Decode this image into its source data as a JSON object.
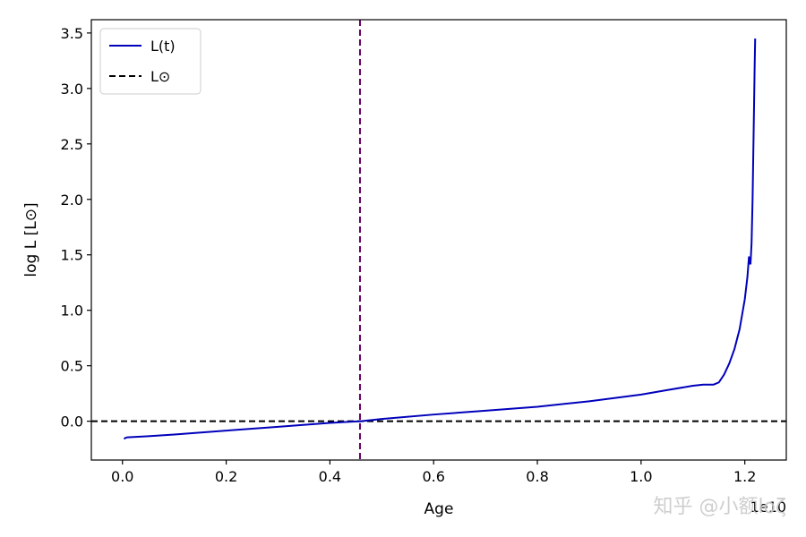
{
  "chart_data": {
    "type": "line",
    "title": "",
    "xlabel": "Age",
    "ylabel": "log L [L⊙]",
    "x_scale_label": "1e10",
    "xlim": [
      -0.06,
      1.28
    ],
    "ylim": [
      -0.35,
      3.62
    ],
    "xticks": [
      0.0,
      0.2,
      0.4,
      0.6,
      0.8,
      1.0,
      1.2
    ],
    "xtick_labels": [
      "0.0",
      "0.2",
      "0.4",
      "0.6",
      "0.8",
      "1.0",
      "1.2"
    ],
    "yticks": [
      0.0,
      0.5,
      1.0,
      1.5,
      2.0,
      2.5,
      3.0,
      3.5
    ],
    "ytick_labels": [
      "0.0",
      "0.5",
      "1.0",
      "1.5",
      "2.0",
      "2.5",
      "3.0",
      "3.5"
    ],
    "grid": false,
    "legend": {
      "placement": "top-left",
      "entries": [
        {
          "label": "L(t)",
          "color": "#0000bb",
          "style": "solid"
        },
        {
          "label": "L⊙",
          "color": "#000000",
          "style": "dashed"
        }
      ]
    },
    "series": [
      {
        "name": "L(t)",
        "color": "#0000bb",
        "x": [
          0.003,
          0.006,
          0.01,
          0.05,
          0.1,
          0.2,
          0.3,
          0.4,
          0.46,
          0.5,
          0.6,
          0.7,
          0.8,
          0.9,
          1.0,
          1.05,
          1.1,
          1.12,
          1.14,
          1.15,
          1.16,
          1.17,
          1.18,
          1.19,
          1.2,
          1.205,
          1.208,
          1.21,
          1.211,
          1.213,
          1.215,
          1.217,
          1.219,
          1.22
        ],
        "y": [
          -0.16,
          -0.15,
          -0.145,
          -0.135,
          -0.12,
          -0.085,
          -0.05,
          -0.015,
          0.0,
          0.02,
          0.06,
          0.095,
          0.13,
          0.18,
          0.24,
          0.28,
          0.32,
          0.33,
          0.33,
          0.35,
          0.42,
          0.52,
          0.65,
          0.83,
          1.1,
          1.3,
          1.48,
          1.42,
          1.42,
          1.6,
          2.0,
          2.6,
          3.2,
          3.45
        ]
      }
    ],
    "reference_lines": [
      {
        "orientation": "horizontal",
        "value": 0.0,
        "color": "#000000",
        "style": "dashed",
        "label": "L⊙"
      },
      {
        "orientation": "vertical",
        "value": 0.458,
        "color": "#660066",
        "style": "dashed"
      }
    ]
  },
  "watermark": {
    "text": "知乎 @小额lοζ"
  }
}
